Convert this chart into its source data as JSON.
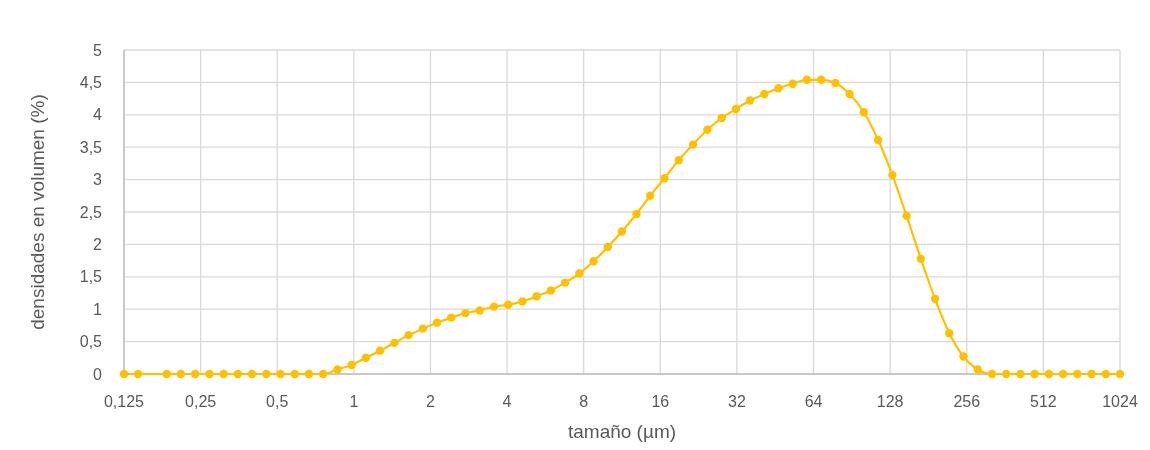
{
  "chart_data": {
    "type": "line",
    "xlabel": "tamaño (µm)",
    "ylabel": "densidades en volumen (%)",
    "log": "x",
    "grid": true,
    "marker": "circle",
    "line_style": "solid",
    "xlim": [
      0.125,
      1024
    ],
    "xticks": [
      {
        "value": 0.125,
        "label": "0,125"
      },
      {
        "value": 0.25,
        "label": "0,25"
      },
      {
        "value": 0.5,
        "label": "0,5"
      },
      1,
      2,
      4,
      8,
      16,
      32,
      64,
      128,
      256,
      512,
      1024
    ],
    "ylim": [
      0,
      5
    ],
    "yticks": [
      0,
      {
        "value": 0.5,
        "label": "0,5"
      },
      1,
      {
        "value": 1.5,
        "label": "1,5"
      },
      2,
      {
        "value": 2.5,
        "label": "2,5"
      },
      3,
      {
        "value": 3.5,
        "label": "3,5"
      },
      4,
      {
        "value": 4.5,
        "label": "4,5"
      },
      5
    ],
    "series": [
      {
        "color": "#ffc000",
        "x": [
          0.125,
          0.142,
          0.184,
          0.209,
          0.238,
          0.271,
          0.308,
          0.35,
          0.398,
          0.453,
          0.515,
          0.586,
          0.666,
          0.758,
          0.862,
          0.98,
          1.115,
          1.268,
          1.443,
          1.641,
          1.866,
          2.123,
          2.414,
          2.746,
          3.123,
          3.552,
          4.04,
          4.596,
          5.227,
          5.945,
          6.762,
          7.69,
          8.75,
          9.95,
          11.3,
          12.9,
          14.6,
          16.6,
          18.9,
          21.5,
          24.5,
          27.9,
          31.7,
          36.0,
          41.0,
          46.6,
          53.0,
          60.3,
          68.6,
          78.0,
          88.7,
          100.9,
          114.8,
          130.6,
          148.5,
          168.9,
          192.1,
          218.5,
          248.5,
          282.7,
          321.5,
          365.7,
          415.9,
          473.1,
          538.1,
          612.0,
          696.1,
          791.7,
          900.5,
          1024
        ],
        "values": [
          0,
          0,
          0,
          0,
          0,
          0,
          0,
          0,
          0,
          0,
          0,
          0,
          0,
          0,
          0.07,
          0.14,
          0.25,
          0.36,
          0.48,
          0.6,
          0.7,
          0.79,
          0.87,
          0.94,
          0.98,
          1.04,
          1.07,
          1.12,
          1.2,
          1.29,
          1.41,
          1.55,
          1.74,
          1.96,
          2.2,
          2.47,
          2.75,
          3.02,
          3.3,
          3.54,
          3.77,
          3.95,
          4.09,
          4.22,
          4.32,
          4.41,
          4.48,
          4.54,
          4.54,
          4.49,
          4.32,
          4.04,
          3.61,
          3.07,
          2.44,
          1.78,
          1.16,
          0.63,
          0.27,
          0.07,
          0,
          0,
          0,
          0,
          0,
          0,
          0,
          0,
          0,
          0
        ]
      }
    ]
  }
}
